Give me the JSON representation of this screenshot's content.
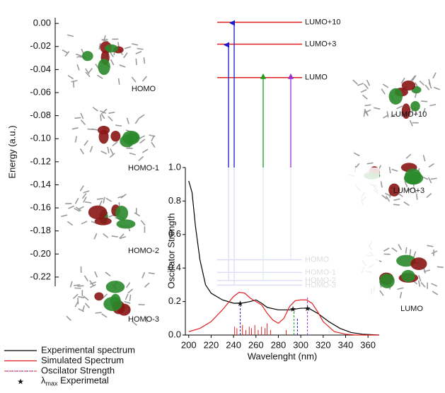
{
  "chart_data": [
    {
      "type": "energy-levels",
      "ylabel": "Energy (a.u.)",
      "ylim": [
        -0.228,
        0.005
      ],
      "yticks": [
        {
          "value": 0,
          "label": "0.00"
        },
        {
          "value": -0.02,
          "label": "-0.02"
        },
        {
          "value": -0.04,
          "label": "-0.04"
        },
        {
          "value": -0.06,
          "label": "-0.06"
        },
        {
          "value": -0.08,
          "label": "-0.08"
        },
        {
          "value": -0.1,
          "label": "-0.10"
        },
        {
          "value": -0.12,
          "label": "-0.12"
        },
        {
          "value": -0.14,
          "label": "-0.14"
        },
        {
          "value": -0.16,
          "label": "-0.16"
        },
        {
          "value": -0.18,
          "label": "-0.18"
        },
        {
          "value": -0.2,
          "label": "-0.20"
        },
        {
          "value": -0.22,
          "label": "-0.22"
        }
      ],
      "levels": [
        {
          "name": "LUMO+10",
          "energy": 0.001,
          "color": "#e02020"
        },
        {
          "name": "LUMO+3",
          "energy": -0.018,
          "color": "#e02020"
        },
        {
          "name": "LUMO",
          "energy": -0.047,
          "color": "#e02020"
        },
        {
          "name": "HOMO",
          "energy": -0.205,
          "color": "#2020c0"
        },
        {
          "name": "HOMO-1",
          "energy": -0.216,
          "color": "#2020c0"
        },
        {
          "name": "HOMO-2",
          "energy": -0.223,
          "color": "#2020c0"
        },
        {
          "name": "HOMO-3",
          "energy": -0.227,
          "color": "#2020c0"
        }
      ]
    },
    {
      "type": "line",
      "xlabel": "Wavelenght (nm)",
      "ylabel": "Oscillator Strength",
      "xlim": [
        197,
        370
      ],
      "ylim": [
        0,
        1
      ],
      "xticks": [
        200,
        220,
        240,
        260,
        280,
        300,
        320,
        340,
        360
      ],
      "yticks": [
        {
          "value": 0,
          "label": "0.0"
        },
        {
          "value": 0.2,
          "label": "0.2"
        },
        {
          "value": 0.4,
          "label": "0.4"
        },
        {
          "value": 0.6,
          "label": "0.6"
        },
        {
          "value": 0.8,
          "label": "0.8"
        },
        {
          "value": 1,
          "label": "1.0"
        }
      ],
      "series": [
        {
          "name": "Experimental spectrum",
          "color": "#000000",
          "kind": "line",
          "x": [
            200,
            203,
            206,
            210,
            215,
            220,
            230,
            240,
            247,
            255,
            260,
            265,
            270,
            280,
            290,
            300,
            307,
            315,
            325,
            335,
            345,
            355,
            370
          ],
          "values": [
            0.92,
            0.85,
            0.65,
            0.45,
            0.3,
            0.25,
            0.21,
            0.19,
            0.19,
            0.2,
            0.21,
            0.19,
            0.165,
            0.15,
            0.15,
            0.16,
            0.16,
            0.13,
            0.08,
            0.04,
            0.015,
            0.005,
            0
          ]
        },
        {
          "name": "Simulated Spectrum",
          "color": "#e02020",
          "kind": "line",
          "x": [
            200,
            210,
            220,
            230,
            240,
            245,
            250,
            255,
            260,
            265,
            270,
            275,
            280,
            285,
            290,
            295,
            300,
            305,
            310,
            315,
            320,
            330,
            340,
            350,
            370
          ],
          "values": [
            0.02,
            0.04,
            0.08,
            0.15,
            0.23,
            0.255,
            0.25,
            0.22,
            0.2,
            0.18,
            0.13,
            0.09,
            0.07,
            0.1,
            0.17,
            0.205,
            0.21,
            0.21,
            0.19,
            0.14,
            0.08,
            0.02,
            0.005,
            0,
            0
          ]
        },
        {
          "name": "Oscilator Strength",
          "color": "#e02020",
          "kind": "sticks",
          "x": [
            241,
            243,
            246,
            248,
            251,
            254,
            256,
            259,
            262,
            265,
            268,
            270,
            273,
            287,
            294,
            297,
            306
          ],
          "values": [
            0.05,
            0.04,
            0.2,
            0.06,
            0.03,
            0.05,
            0.04,
            0.06,
            0.03,
            0.05,
            0.04,
            0.07,
            0.03,
            0.03,
            0.15,
            0.1,
            0.23
          ],
          "colors": [
            "#e02020",
            "#e02020",
            "#2020c0",
            "#e02020",
            "#e02020",
            "#e02020",
            "#e02020",
            "#e02020",
            "#e02020",
            "#e02020",
            "#e02020",
            "#e02020",
            "#e02020",
            "#e02020",
            "#1a9e1a",
            "#2020c0",
            "#9b30d0"
          ]
        },
        {
          "name": "λ",
          "name_sub": "max",
          "name_rest": " Experimetal",
          "color": "#000000",
          "kind": "markers",
          "x": [
            246,
            293,
            306
          ],
          "values": [
            0.19,
            0.155,
            0.16
          ]
        }
      ]
    }
  ]
}
